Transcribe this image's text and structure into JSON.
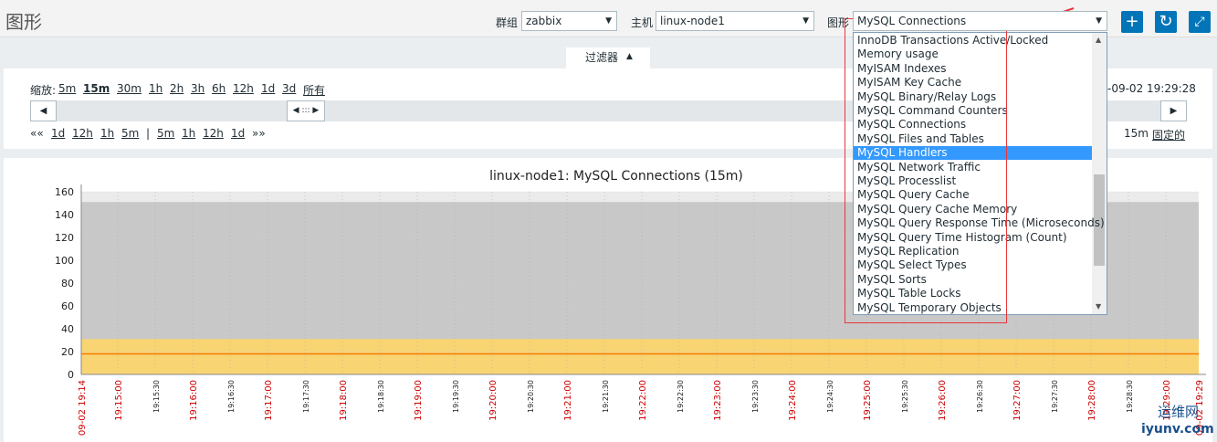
{
  "header": {
    "title": "图形",
    "group_label": "群组",
    "group": "zabbix",
    "host_label": "主机",
    "host": "linux-node1",
    "graph_label": "图形",
    "graph": "MySQL Connections"
  },
  "dropdown": {
    "items": [
      "InnoDB Transactions Active/Locked",
      "Memory usage",
      "MyISAM Indexes",
      "MyISAM Key Cache",
      "MySQL Binary/Relay Logs",
      "MySQL Command Counters",
      "MySQL Connections",
      "MySQL Files and Tables",
      "MySQL Handlers",
      "MySQL Network Traffic",
      "MySQL Processlist",
      "MySQL Query Cache",
      "MySQL Query Cache Memory",
      "MySQL Query Response Time (Microseconds)",
      "MySQL Query Time Histogram (Count)",
      "MySQL Replication",
      "MySQL Select Types",
      "MySQL Sorts",
      "MySQL Table Locks",
      "MySQL Temporary Objects"
    ],
    "highlighted": 8
  },
  "filter": {
    "tab": "过滤器",
    "zoom_label": "缩放:",
    "zoom": [
      "5m",
      "15m",
      "30m",
      "1h",
      "2h",
      "3h",
      "6h",
      "12h",
      "1d",
      "3d",
      "所有"
    ],
    "zoom_active": 1,
    "time_to": "-09-02 19:29:28",
    "nav_back": [
      "««",
      "1d",
      "12h",
      "1h",
      "5m"
    ],
    "separator": "|",
    "nav_forward": [
      "5m",
      "1h",
      "12h",
      "1d",
      "»»"
    ],
    "period": "15m",
    "fixed": "固定的"
  },
  "graph": {
    "title": "linux-node1: MySQL Connections (15m)",
    "ylim": [
      0,
      160
    ],
    "yticks": [
      0,
      20,
      40,
      60,
      80,
      100,
      120,
      140,
      160
    ],
    "series": [
      {
        "type": "area",
        "color": "#c8c8c8",
        "values": [
          151,
          151
        ]
      },
      {
        "type": "area",
        "color": "#f8d473",
        "values": [
          31,
          31
        ]
      },
      {
        "type": "line",
        "color": "#f57c00",
        "values": [
          18,
          18
        ]
      }
    ],
    "x_labels": [
      "09-02 19:14",
      "19:15:00",
      "19:15:30",
      "19:16:00",
      "19:16:30",
      "19:17:00",
      "19:17:30",
      "19:18:00",
      "19:18:30",
      "19:19:00",
      "19:19:30",
      "19:20:00",
      "19:20:30",
      "19:21:00",
      "19:21:30",
      "19:22:00",
      "19:22:30",
      "19:23:00",
      "19:23:30",
      "19:24:00",
      "19:24:30",
      "19:25:00",
      "19:25:30",
      "19:26:00",
      "19:26:30",
      "19:27:00",
      "19:27:30",
      "19:28:00",
      "19:28:30",
      "19:29:00",
      "09-02 19:29"
    ]
  },
  "watermark": {
    "line1": "运维网",
    "line2": "iyunv.com"
  }
}
